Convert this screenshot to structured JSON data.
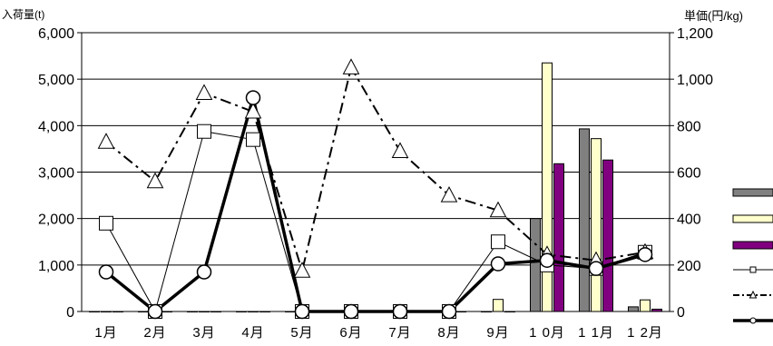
{
  "chart_data": {
    "type": "bar+line",
    "categories": [
      "1月",
      "2月",
      "3月",
      "4月",
      "5月",
      "6月",
      "7月",
      "8月",
      "9月",
      "10月",
      "11月",
      "12月"
    ],
    "category_labels": [
      "1月",
      "2月",
      "3月",
      "4月",
      "5月",
      "6月",
      "7月",
      "8月",
      "9月",
      "1 0月",
      "1 1月",
      "1 2月"
    ],
    "y_left": {
      "label": "入荷量(t)",
      "ticks": [
        "0",
        "1,000",
        "2,000",
        "3,000",
        "4,000",
        "5,000",
        "6,000"
      ],
      "ylim": [
        0,
        6000
      ]
    },
    "y_right": {
      "label": "単価(円/kg)",
      "ticks": [
        "0",
        "200",
        "400",
        "600",
        "800",
        "1,000",
        "1,200"
      ],
      "ylim": [
        0,
        1200
      ]
    },
    "bar_series": [
      {
        "values": [
          0,
          0,
          0,
          0,
          0,
          0,
          0,
          0,
          0,
          2000,
          3930,
          100
        ],
        "color": "#808080"
      },
      {
        "values": [
          0,
          0,
          0,
          0,
          0,
          0,
          0,
          0,
          260,
          5350,
          3720,
          250
        ],
        "color": "#ffffcc"
      },
      {
        "values": [
          0,
          0,
          0,
          0,
          0,
          0,
          0,
          0,
          0,
          3180,
          3260,
          50
        ],
        "color": "#800080"
      }
    ],
    "line_series": [
      {
        "marker": "square",
        "style": "thin-solid",
        "values": [
          380,
          0,
          775,
          740,
          0,
          0,
          0,
          0,
          300,
          200,
          185,
          255
        ]
      },
      {
        "marker": "triangle",
        "style": "dash-dot",
        "values": [
          730,
          560,
          940,
          860,
          175,
          1050,
          690,
          500,
          435,
          245,
          220,
          255
        ]
      },
      {
        "marker": "circle",
        "style": "thick-solid",
        "values": [
          170,
          0,
          170,
          920,
          0,
          0,
          0,
          0,
          205,
          220,
          185,
          245
        ]
      }
    ],
    "grid": true,
    "legend": "right"
  }
}
